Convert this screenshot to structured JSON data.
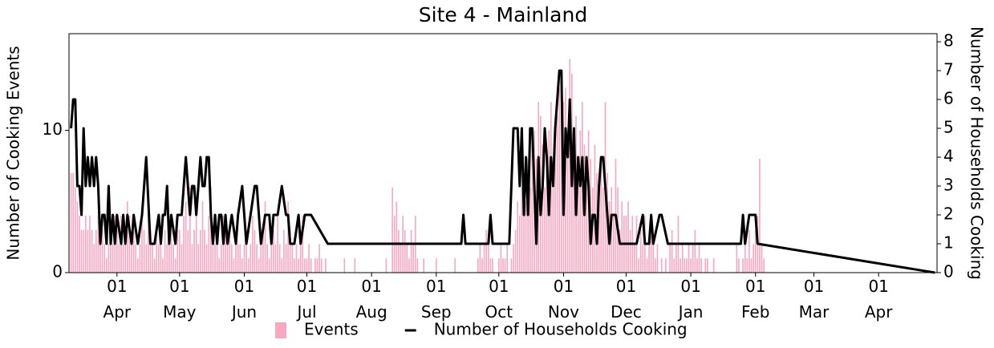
{
  "chart_data": {
    "type": "bar_line",
    "title": "Site 4 - Mainland",
    "y_label": "Number of Cooking Events",
    "y2_label": "Number of Households Cooking",
    "xlim": [
      8,
      424
    ],
    "xticks": [
      {
        "value": 31,
        "label": "01 Apr"
      },
      {
        "value": 61,
        "label": "01 May"
      },
      {
        "value": 92,
        "label": "01 Jun"
      },
      {
        "value": 122,
        "label": "01 Jul"
      },
      {
        "value": 153,
        "label": "01 Aug"
      },
      {
        "value": 184,
        "label": "01 Sep"
      },
      {
        "value": 214,
        "label": "01 Oct"
      },
      {
        "value": 245,
        "label": "01 Nov"
      },
      {
        "value": 275,
        "label": "01 Dec"
      },
      {
        "value": 306,
        "label": "01 Jan"
      },
      {
        "value": 337,
        "label": "01 Feb"
      },
      {
        "value": 365,
        "label": "01 Mar"
      },
      {
        "value": 396,
        "label": "01 Apr"
      }
    ],
    "ylim": [
      0,
      16.8
    ],
    "yticks": [
      0,
      10
    ],
    "y2lim": [
      0,
      8.28
    ],
    "y2ticks": [
      0,
      1,
      2,
      3,
      4,
      5,
      6,
      7,
      8
    ],
    "series": [
      {
        "name": "Events",
        "type": "bar",
        "color": "#f7a9c1",
        "x": [
          9,
          10,
          11,
          12,
          13,
          14,
          15,
          16,
          17,
          18,
          19,
          20,
          21,
          22,
          23,
          24,
          25,
          26,
          27,
          28,
          29,
          30,
          31,
          32,
          33,
          34,
          35,
          36,
          37,
          38,
          39,
          40,
          41,
          42,
          43,
          44,
          45,
          46,
          47,
          48,
          49,
          50,
          51,
          52,
          53,
          54,
          55,
          56,
          57,
          58,
          59,
          60,
          61,
          62,
          63,
          64,
          65,
          66,
          67,
          68,
          69,
          70,
          71,
          72,
          73,
          74,
          75,
          76,
          77,
          78,
          79,
          80,
          81,
          82,
          83,
          84,
          85,
          86,
          87,
          88,
          89,
          90,
          91,
          92,
          93,
          94,
          95,
          96,
          97,
          98,
          99,
          100,
          101,
          102,
          103,
          104,
          105,
          106,
          107,
          108,
          109,
          110,
          111,
          112,
          113,
          114,
          115,
          116,
          117,
          118,
          119,
          120,
          121,
          122,
          123,
          124,
          125,
          126,
          127,
          128,
          129,
          130,
          131,
          132,
          133,
          134,
          135,
          136,
          137,
          138,
          139,
          140,
          141,
          142,
          143,
          144,
          145,
          146,
          147,
          148,
          149,
          150,
          151,
          152,
          153,
          154,
          155,
          156,
          157,
          158,
          159,
          160,
          161,
          162,
          163,
          164,
          165,
          166,
          167,
          168,
          169,
          170,
          171,
          172,
          173,
          174,
          175,
          176,
          177,
          178,
          179,
          180,
          181,
          182,
          183,
          184,
          185,
          186,
          187,
          188,
          189,
          190,
          191,
          192,
          193,
          194,
          195,
          196,
          197,
          198,
          199,
          200,
          201,
          202,
          203,
          204,
          205,
          206,
          207,
          208,
          209,
          210,
          211,
          212,
          213,
          214,
          215,
          216,
          217,
          218,
          219,
          220,
          221,
          222,
          223,
          224,
          225,
          226,
          227,
          228,
          229,
          230,
          231,
          232,
          233,
          234,
          235,
          236,
          237,
          238,
          239,
          240,
          241,
          242,
          243,
          244,
          245,
          246,
          247,
          248,
          249,
          250,
          251,
          252,
          253,
          254,
          255,
          256,
          257,
          258,
          259,
          260,
          261,
          262,
          263,
          264,
          265,
          266,
          267,
          268,
          269,
          270,
          271,
          272,
          273,
          274,
          275,
          276,
          277,
          278,
          279,
          280,
          281,
          282,
          283,
          284,
          285,
          286,
          287,
          288,
          289,
          290,
          291,
          292,
          293,
          294,
          295,
          296,
          297,
          298,
          299,
          300,
          301,
          302,
          303,
          304,
          305,
          306,
          307,
          308,
          309,
          310,
          311,
          312,
          313,
          314,
          315,
          316,
          317,
          318,
          319,
          320,
          321,
          322,
          323,
          324,
          325,
          326,
          327,
          328,
          329,
          330,
          331,
          332,
          333,
          334,
          335,
          336,
          337,
          338,
          339,
          340,
          341
        ],
        "values": [
          7,
          7,
          6,
          5,
          4,
          3,
          3,
          4,
          3,
          4,
          3,
          2,
          3,
          4,
          2,
          3,
          2,
          1,
          2,
          3,
          2,
          4,
          3,
          2,
          4,
          2,
          3,
          5,
          4,
          2,
          3,
          2,
          1,
          2,
          4,
          3,
          2,
          5,
          3,
          2,
          1,
          3,
          2,
          2,
          1,
          3,
          2,
          4,
          3,
          2,
          1,
          3,
          3,
          2,
          4,
          5,
          3,
          6,
          2,
          3,
          4,
          2,
          3,
          5,
          3,
          2,
          4,
          6,
          3,
          2,
          3,
          1,
          2,
          4,
          3,
          2,
          3,
          2,
          1,
          3,
          2,
          2,
          1,
          2,
          3,
          1,
          2,
          4,
          3,
          2,
          1,
          2,
          3,
          5,
          2,
          1,
          2,
          3,
          2,
          4,
          2,
          1,
          3,
          2,
          5,
          3,
          2,
          1,
          2,
          1,
          2,
          4,
          1,
          1,
          2,
          1,
          0,
          1,
          1,
          2,
          1,
          0,
          1,
          0,
          0,
          0,
          0,
          0,
          0,
          0,
          0,
          1,
          0,
          0,
          0,
          0,
          1,
          0,
          0,
          0,
          0,
          0,
          0,
          0,
          0,
          0,
          0,
          0,
          0,
          0,
          0,
          1,
          0,
          0,
          6,
          4,
          5,
          3,
          2,
          4,
          3,
          2,
          1,
          3,
          2,
          4,
          1,
          0,
          0,
          1,
          0,
          0,
          0,
          0,
          0,
          1,
          0,
          0,
          0,
          0,
          0,
          0,
          0,
          0,
          1,
          0,
          0,
          0,
          0,
          0,
          0,
          0,
          0,
          0,
          0,
          1,
          2,
          1,
          2,
          3,
          2,
          1,
          1,
          0,
          0,
          1,
          2,
          1,
          1,
          2,
          0,
          1,
          2,
          3,
          5,
          4,
          6,
          7,
          5,
          8,
          6,
          9,
          10,
          8,
          12,
          11,
          9,
          6,
          8,
          10,
          12,
          7,
          9,
          11,
          13,
          14,
          12,
          13,
          10,
          15,
          14,
          9,
          11,
          8,
          10,
          12,
          9,
          7,
          10,
          8,
          6,
          9,
          7,
          5,
          8,
          6,
          12,
          7,
          5,
          6,
          4,
          8,
          6,
          3,
          5,
          4,
          4,
          5,
          3,
          4,
          2,
          4,
          1,
          3,
          2,
          4,
          1,
          2,
          3,
          2,
          1,
          2,
          0,
          1,
          0,
          1,
          0,
          2,
          3,
          1,
          2,
          4,
          1,
          2,
          1,
          1,
          2,
          1,
          2,
          3,
          1,
          2,
          1,
          0,
          1,
          1,
          0,
          0,
          1,
          0,
          0,
          0,
          0,
          0,
          0,
          0,
          0,
          0,
          0,
          2,
          1,
          0,
          1,
          2,
          1,
          3,
          1,
          2,
          3,
          4,
          8,
          2,
          1
        ]
      },
      {
        "name": "Number of Households Cooking",
        "type": "line",
        "axis": "y2",
        "color": "#000000",
        "x": [
          9,
          10,
          11,
          12,
          13,
          14,
          15,
          16,
          17,
          18,
          19,
          20,
          21,
          22,
          23,
          24,
          25,
          26,
          27,
          28,
          29,
          30,
          31,
          33,
          34,
          35,
          36,
          38,
          39,
          41,
          43,
          45,
          47,
          49,
          51,
          52,
          53,
          54,
          55,
          56,
          57,
          59,
          60,
          62,
          64,
          66,
          67,
          68,
          69,
          71,
          72,
          73,
          74,
          75,
          76,
          77,
          78,
          79,
          80,
          81,
          82,
          83,
          84,
          86,
          88,
          89,
          91,
          92,
          93,
          95,
          97,
          98,
          100,
          102,
          104,
          105,
          106,
          108,
          110,
          112,
          113,
          114,
          116,
          118,
          119,
          121,
          124,
          132,
          196,
          197,
          198,
          209,
          210,
          211,
          219,
          220,
          221,
          223,
          224,
          225,
          226,
          227,
          228,
          229,
          230,
          231,
          232,
          233,
          234,
          235,
          236,
          237,
          238,
          239,
          240,
          241,
          242,
          243,
          244,
          245,
          246,
          247,
          248,
          249,
          250,
          251,
          252,
          253,
          254,
          255,
          256,
          257,
          258,
          259,
          260,
          261,
          262,
          263,
          264,
          265,
          266,
          267,
          268,
          270,
          272,
          280,
          283,
          284,
          286,
          287,
          288,
          291,
          292,
          295,
          330,
          331,
          332,
          334,
          337,
          338,
          423
        ],
        "values": [
          5,
          6,
          6,
          3,
          3,
          2,
          5,
          3,
          4,
          3,
          4,
          3,
          4,
          3,
          1,
          2,
          2,
          1,
          3,
          1,
          2,
          1,
          2,
          1,
          2,
          1,
          2,
          1,
          2,
          1,
          2,
          4,
          1,
          1,
          2,
          1,
          2,
          2,
          3,
          1,
          2,
          1,
          2,
          2,
          4,
          2,
          3,
          3,
          2,
          4,
          3,
          3,
          4,
          4,
          2,
          1,
          2,
          1,
          2,
          2,
          1,
          2,
          1,
          2,
          1,
          2,
          3,
          2,
          1,
          2,
          3,
          3,
          1,
          2,
          2,
          1,
          2,
          2,
          3,
          2,
          2,
          1,
          1,
          2,
          1,
          2,
          2,
          1,
          1,
          2,
          1,
          1,
          2,
          1,
          1,
          3,
          5,
          5,
          3,
          5,
          2,
          4,
          2,
          5,
          5,
          3,
          1,
          4,
          2,
          3,
          5,
          4,
          2,
          4,
          3,
          5,
          6,
          7,
          7,
          2,
          5,
          4,
          6,
          3,
          5,
          2,
          4,
          3,
          4,
          2,
          4,
          3,
          1,
          2,
          2,
          1,
          3,
          4,
          4,
          3,
          2,
          1,
          2,
          2,
          1,
          1,
          2,
          1,
          1,
          2,
          1,
          2,
          2,
          1,
          1,
          2,
          1,
          2,
          2,
          1,
          0
        ]
      }
    ]
  }
}
